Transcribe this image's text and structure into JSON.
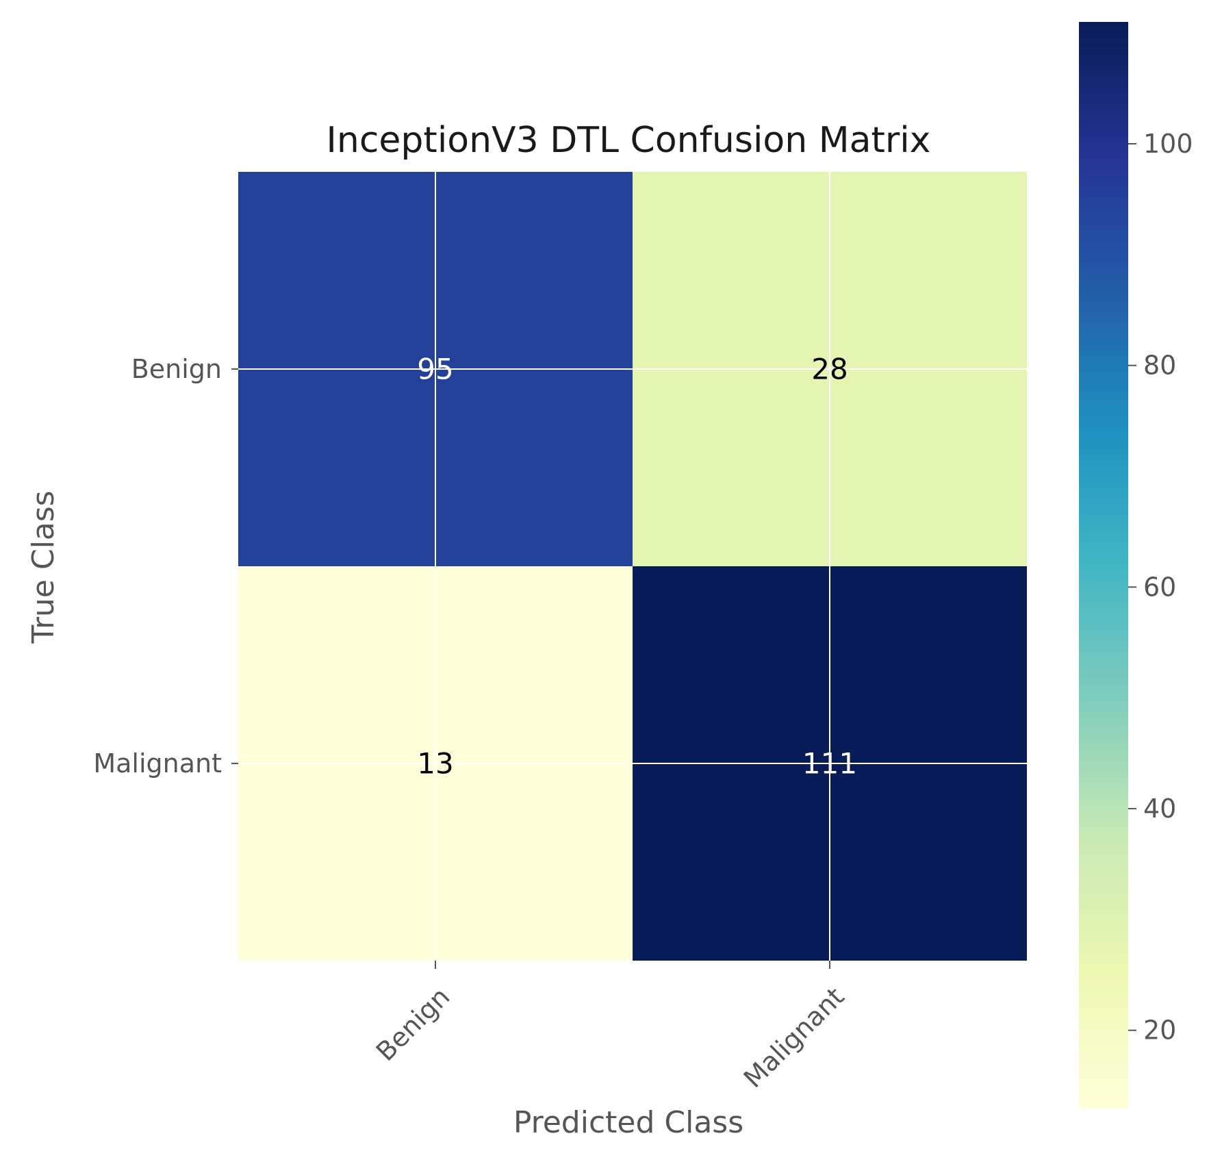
{
  "chart_data": {
    "type": "heatmap",
    "title": "InceptionV3 DTL Confusion Matrix",
    "xlabel": "Predicted Class",
    "ylabel": "True Class",
    "row_labels": [
      "Benign",
      "Malignant"
    ],
    "col_labels": [
      "Benign",
      "Malignant"
    ],
    "values": [
      [
        95,
        28
      ],
      [
        13,
        111
      ]
    ],
    "cell_text": [
      [
        "95",
        "28"
      ],
      [
        "13",
        "111"
      ]
    ],
    "colormap": "YlGnBu",
    "colorbar": {
      "range": [
        13,
        111
      ],
      "ticks": [
        20,
        40,
        60,
        80,
        100
      ],
      "tick_labels": [
        "20",
        "40",
        "60",
        "80",
        "100"
      ]
    },
    "grid": true
  }
}
